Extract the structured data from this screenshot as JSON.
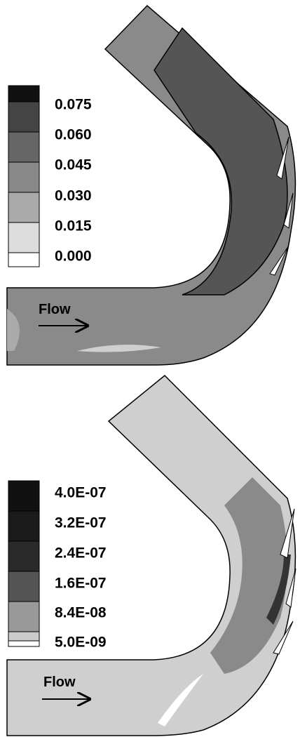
{
  "panels": [
    {
      "legend": {
        "labels": [
          "0.075",
          "0.060",
          "0.045",
          "0.030",
          "0.015",
          "0.000"
        ]
      },
      "flow_label": "Flow"
    },
    {
      "legend": {
        "labels": [
          "4.0E-07",
          "3.2E-07",
          "2.4E-07",
          "1.6E-07",
          "8.4E-08",
          "5.0E-09"
        ]
      },
      "flow_label": "Flow"
    }
  ]
}
